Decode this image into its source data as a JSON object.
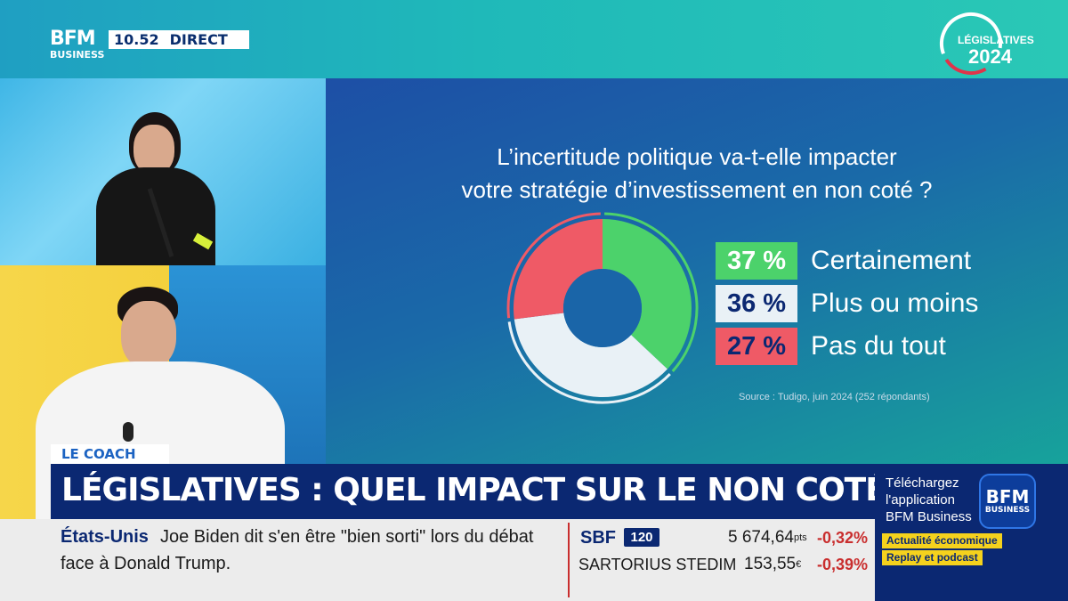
{
  "header": {
    "logo_line1": "BFM",
    "logo_line2": "BUSINESS",
    "time": "10.52",
    "live_label": "DIRECT",
    "event_badge_label": "LÉGISLATIVES",
    "event_badge_year": "2024"
  },
  "chart_data": {
    "type": "pie",
    "title_line1": "L’incertitude politique va-t-elle impacter",
    "title_line2": "votre stratégie d’investissement en non coté ?",
    "series": [
      {
        "name": "Certainement",
        "value": 37,
        "label": "37 %",
        "color": "#4cd26b",
        "text_color": "#ffffff"
      },
      {
        "name": "Plus ou moins",
        "value": 36,
        "label": "36 %",
        "color": "#e9f1f6",
        "text_color": "#0b2872"
      },
      {
        "name": "Pas du tout",
        "value": 27,
        "label": "27 %",
        "color": "#ef5a66",
        "text_color": "#0b2872"
      }
    ],
    "source": "Source : Tudigo, juin 2024 (252 répondants)"
  },
  "lower_third": {
    "tag": "LE COACH",
    "headline": "LÉGISLATIVES : QUEL IMPACT SUR LE NON COTÉ ?"
  },
  "promo": {
    "line1": "Téléchargez",
    "line2": "l'application",
    "line3": "BFM Business",
    "logo_line1": "BFM",
    "logo_line2": "BUSINESS",
    "chip1": "Actualité économique",
    "chip2": "Replay et podcast"
  },
  "ticker": {
    "region": "États-Unis",
    "text_line1": "Joe Biden dit s'en être \"bien sorti\" lors du débat",
    "text_line2": "face à Donald Trump.",
    "index_name": "SBF",
    "index_badge": "120",
    "index_value": "5 674,64",
    "index_unit": "pts",
    "index_change": "-0,32%",
    "stock_name": "SARTORIUS STEDIM",
    "stock_value": "153,55",
    "stock_unit": "€",
    "stock_change": "-0,39%"
  },
  "colors": {
    "accent_navy": "#0b2872",
    "chip_yellow": "#f5d21d",
    "negative_red": "#c92e2e"
  }
}
